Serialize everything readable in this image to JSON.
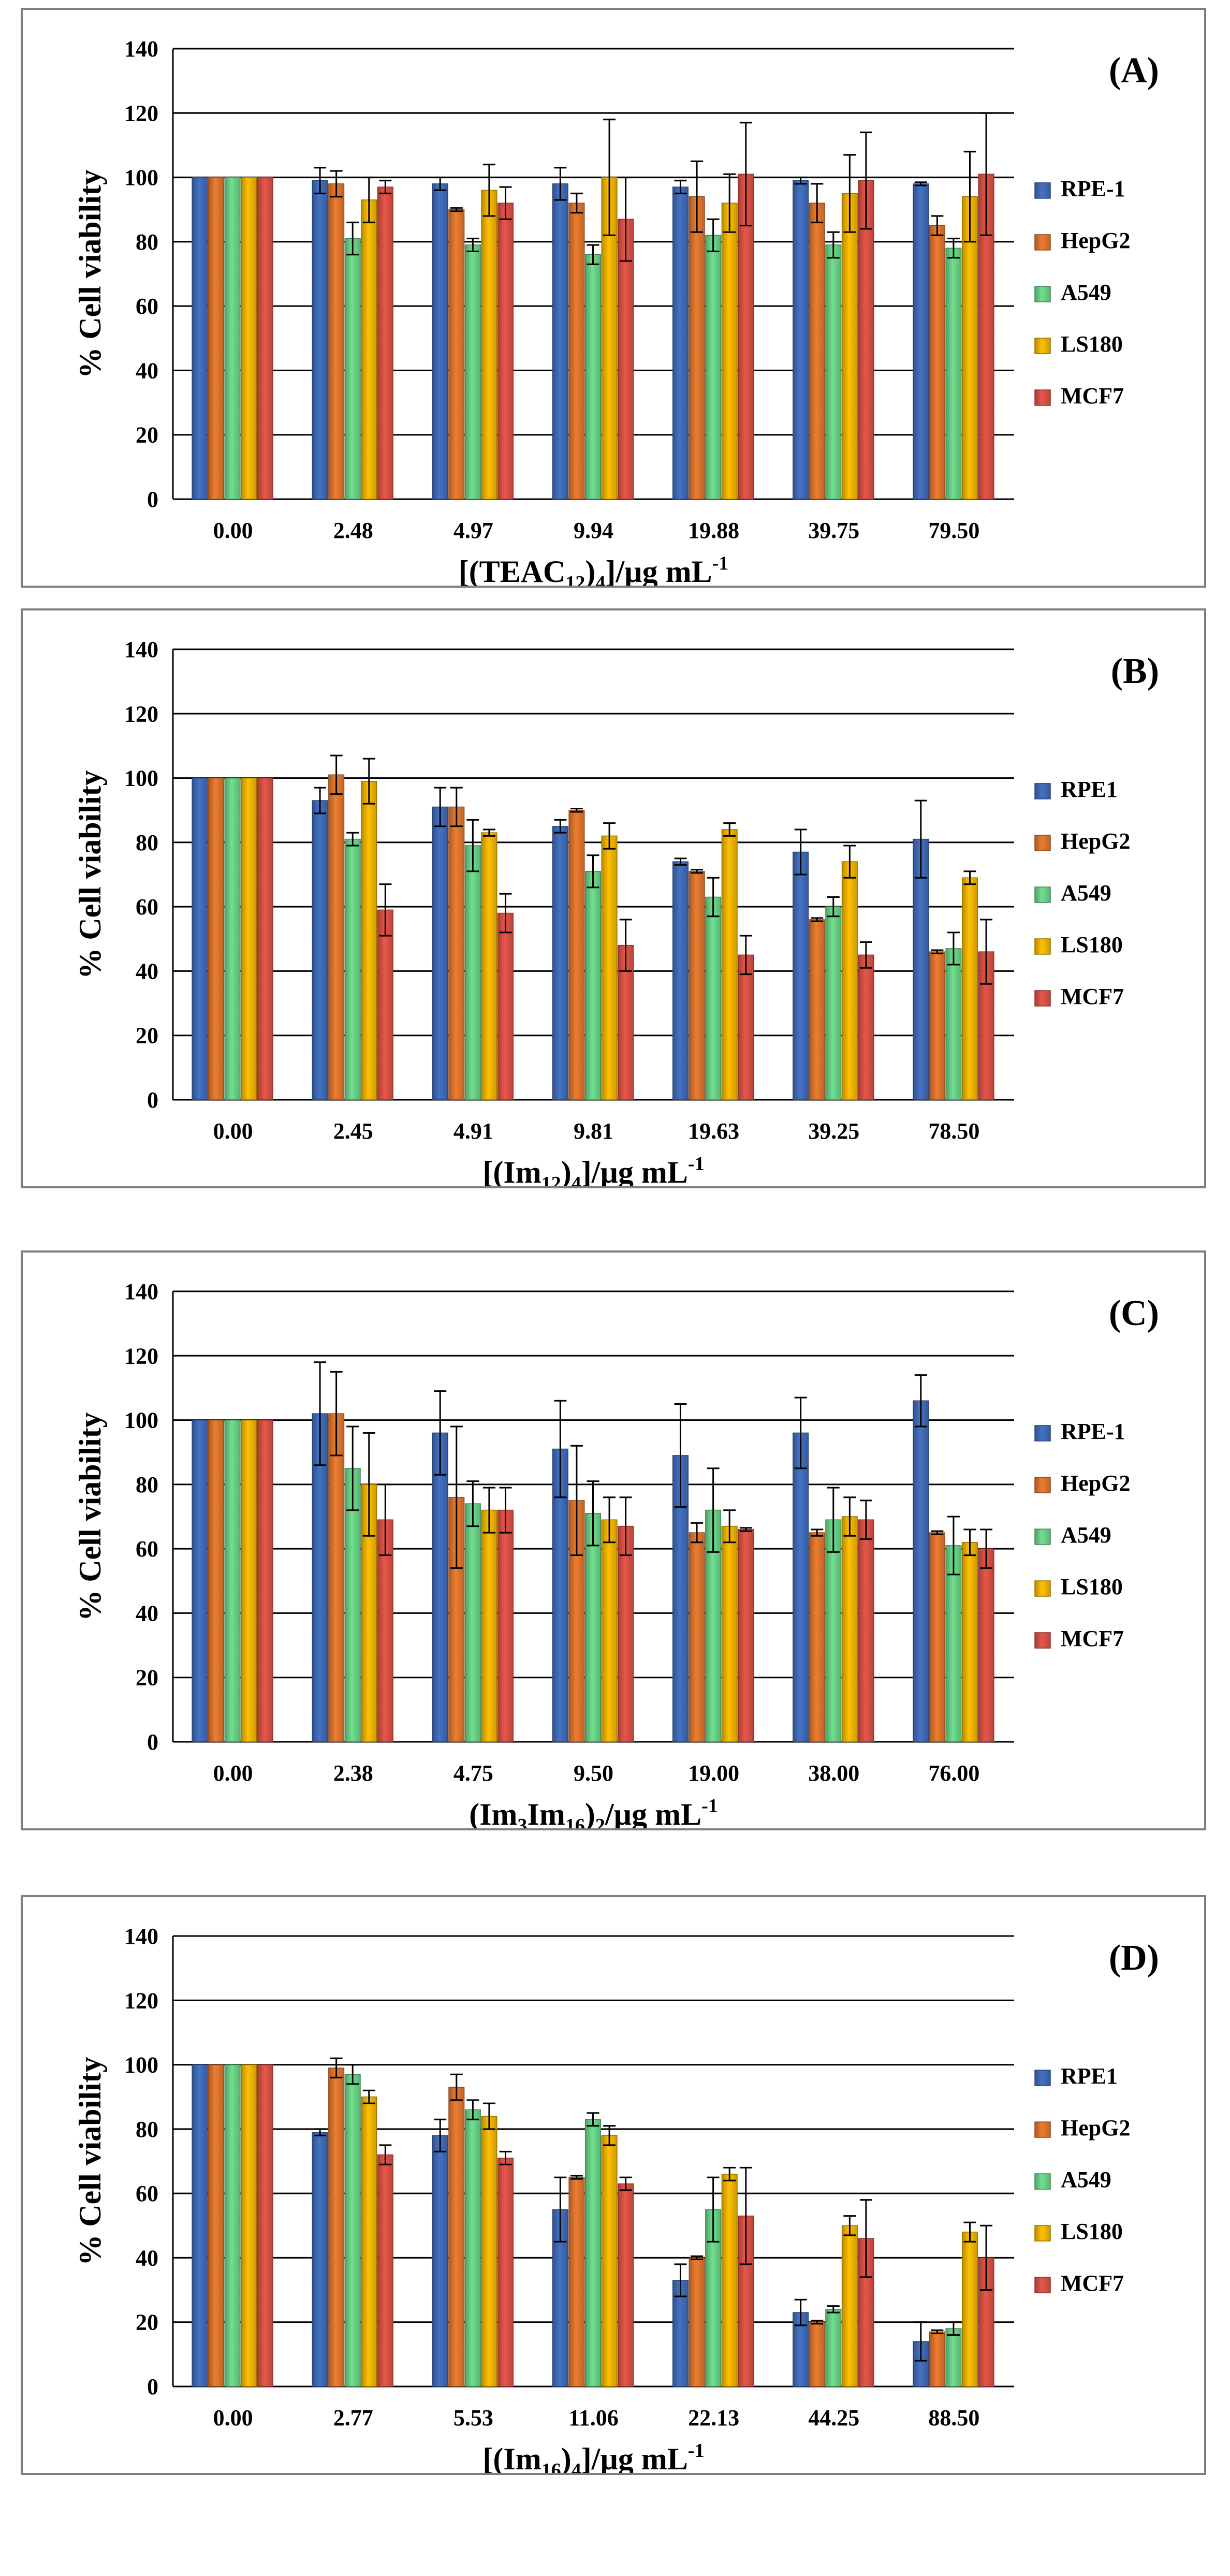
{
  "chart_data": [
    {
      "type": "bar",
      "panel_label": "(A)",
      "ylabel": "% Cell viability",
      "xlabel": {
        "prefix": "[(TEAC",
        "sub1": "12",
        "mid": ")",
        "sub2": "4",
        "tail": "]/µg mL",
        "sup": "-1"
      },
      "ylim": [
        0,
        140
      ],
      "yticks": [
        0,
        20,
        40,
        60,
        80,
        100,
        120,
        140
      ],
      "categories": [
        "0.00",
        "2.48",
        "4.97",
        "9.94",
        "19.88",
        "39.75",
        "79.50"
      ],
      "legend": [
        "RPE-1",
        "HepG2",
        "A549",
        "LS180",
        "MCF7"
      ],
      "series": [
        {
          "name": "RPE-1",
          "color": "#4472C4",
          "values": [
            100,
            99,
            98,
            98,
            97,
            99,
            98
          ],
          "errors": [
            0,
            4,
            2,
            5,
            2,
            1,
            0.5
          ]
        },
        {
          "name": "HepG2",
          "color": "#ED7D31",
          "values": [
            100,
            98,
            90,
            92,
            94,
            92,
            85
          ],
          "errors": [
            0,
            4,
            0.5,
            3,
            11,
            6,
            3
          ]
        },
        {
          "name": "A549",
          "color": "#70E090",
          "values": [
            100,
            81,
            79,
            76,
            82,
            79,
            78
          ],
          "errors": [
            0,
            5,
            2,
            3,
            5,
            4,
            3
          ]
        },
        {
          "name": "LS180",
          "color": "#FFC000",
          "values": [
            100,
            93,
            96,
            100,
            92,
            95,
            94
          ],
          "errors": [
            0,
            7,
            8,
            18,
            9,
            12,
            14
          ]
        },
        {
          "name": "MCF7",
          "color": "#E8564A",
          "values": [
            100,
            97,
            92,
            87,
            101,
            99,
            101
          ],
          "errors": [
            0,
            2,
            5,
            13,
            16,
            15,
            19
          ]
        }
      ]
    },
    {
      "type": "bar",
      "panel_label": "(B)",
      "ylabel": "% Cell viability",
      "xlabel": {
        "prefix": "[(Im",
        "sub1": "12",
        "mid": ")",
        "sub2": "4",
        "tail": "]/µg mL",
        "sup": "-1"
      },
      "ylim": [
        0,
        140
      ],
      "yticks": [
        0,
        20,
        40,
        60,
        80,
        100,
        120,
        140
      ],
      "categories": [
        "0.00",
        "2.45",
        "4.91",
        "9.81",
        "19.63",
        "39.25",
        "78.50"
      ],
      "legend": [
        "RPE1",
        "HepG2",
        "A549",
        "LS180",
        "MCF7"
      ],
      "series": [
        {
          "name": "RPE1",
          "color": "#4472C4",
          "values": [
            100,
            93,
            91,
            85,
            74,
            77,
            81
          ],
          "errors": [
            0,
            4,
            6,
            2,
            1,
            7,
            12
          ]
        },
        {
          "name": "HepG2",
          "color": "#ED7D31",
          "values": [
            100,
            101,
            91,
            90,
            71,
            56,
            46
          ],
          "errors": [
            0,
            6,
            6,
            0.5,
            0.5,
            0.5,
            0.5
          ]
        },
        {
          "name": "A549",
          "color": "#70E090",
          "values": [
            100,
            81,
            79,
            71,
            63,
            60,
            47
          ],
          "errors": [
            0,
            2,
            8,
            5,
            6,
            3,
            5
          ]
        },
        {
          "name": "LS180",
          "color": "#FFC000",
          "values": [
            100,
            99,
            83,
            82,
            84,
            74,
            69
          ],
          "errors": [
            0,
            7,
            1,
            4,
            2,
            5,
            2
          ]
        },
        {
          "name": "MCF7",
          "color": "#E8564A",
          "values": [
            100,
            59,
            58,
            48,
            45,
            45,
            46
          ],
          "errors": [
            0,
            8,
            6,
            8,
            6,
            4,
            10
          ]
        }
      ]
    },
    {
      "type": "bar",
      "panel_label": "(C)",
      "ylabel": "% Cell viability",
      "xlabel": {
        "prefix": "(Im",
        "sub1": "3",
        "mid": "Im",
        "sub2": "16",
        "tail": ")",
        "sub3": "2",
        "tail2": "/µg mL",
        "sup": "-1"
      },
      "ylim": [
        0,
        140
      ],
      "yticks": [
        0,
        20,
        40,
        60,
        80,
        100,
        120,
        140
      ],
      "categories": [
        "0.00",
        "2.38",
        "4.75",
        "9.50",
        "19.00",
        "38.00",
        "76.00"
      ],
      "legend": [
        "RPE-1",
        "HepG2",
        "A549",
        "LS180",
        "MCF7"
      ],
      "series": [
        {
          "name": "RPE-1",
          "color": "#4472C4",
          "values": [
            100,
            102,
            96,
            91,
            89,
            96,
            106
          ],
          "errors": [
            0,
            16,
            13,
            15,
            16,
            11,
            8
          ]
        },
        {
          "name": "HepG2",
          "color": "#ED7D31",
          "values": [
            100,
            102,
            76,
            75,
            65,
            65,
            65
          ],
          "errors": [
            0,
            13,
            22,
            17,
            3,
            1,
            0.5
          ]
        },
        {
          "name": "A549",
          "color": "#70E090",
          "values": [
            100,
            85,
            74,
            71,
            72,
            69,
            61
          ],
          "errors": [
            0,
            13,
            7,
            10,
            13,
            10,
            9
          ]
        },
        {
          "name": "LS180",
          "color": "#FFC000",
          "values": [
            100,
            80,
            72,
            69,
            67,
            70,
            62
          ],
          "errors": [
            0,
            16,
            7,
            7,
            5,
            6,
            4
          ]
        },
        {
          "name": "MCF7",
          "color": "#E8564A",
          "values": [
            100,
            69,
            72,
            67,
            66,
            69,
            60
          ],
          "errors": [
            0,
            11,
            7,
            9,
            0.5,
            6,
            6
          ]
        }
      ]
    },
    {
      "type": "bar",
      "panel_label": "(D)",
      "ylabel": "% Cell viability",
      "xlabel": {
        "prefix": "[(Im",
        "sub1": "16",
        "mid": ")",
        "sub2": "4",
        "tail": "]/µg mL",
        "sup": "-1"
      },
      "ylim": [
        0,
        140
      ],
      "yticks": [
        0,
        20,
        40,
        60,
        80,
        100,
        120,
        140
      ],
      "categories": [
        "0.00",
        "2.77",
        "5.53",
        "11.06",
        "22.13",
        "44.25",
        "88.50"
      ],
      "legend": [
        "RPE1",
        "HepG2",
        "A549",
        "LS180",
        "MCF7"
      ],
      "series": [
        {
          "name": "RPE1",
          "color": "#4472C4",
          "values": [
            100,
            79,
            78,
            55,
            33,
            23,
            14
          ],
          "errors": [
            0,
            1,
            5,
            10,
            5,
            4,
            6
          ]
        },
        {
          "name": "HepG2",
          "color": "#ED7D31",
          "values": [
            100,
            99,
            93,
            65,
            40,
            20,
            17
          ],
          "errors": [
            0,
            3,
            4,
            0.5,
            0.5,
            0.5,
            0.5
          ]
        },
        {
          "name": "A549",
          "color": "#70E090",
          "values": [
            100,
            97,
            86,
            83,
            55,
            24,
            18
          ],
          "errors": [
            0,
            3,
            3,
            2,
            10,
            1,
            2
          ]
        },
        {
          "name": "LS180",
          "color": "#FFC000",
          "values": [
            100,
            90,
            84,
            78,
            66,
            50,
            48
          ],
          "errors": [
            0,
            2,
            4,
            3,
            2,
            3,
            3
          ]
        },
        {
          "name": "MCF7",
          "color": "#E8564A",
          "values": [
            100,
            72,
            71,
            63,
            53,
            46,
            40
          ],
          "errors": [
            0,
            3,
            2,
            2,
            15,
            12,
            10
          ]
        }
      ]
    }
  ]
}
